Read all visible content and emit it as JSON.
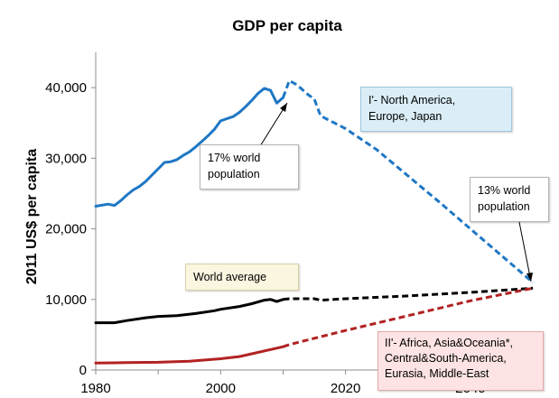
{
  "chart_data": {
    "type": "line",
    "title": "GDP per capita",
    "xlabel": "",
    "ylabel": "2011 US$ per capita",
    "xlim": [
      1980,
      2051
    ],
    "ylim": [
      0,
      45000
    ],
    "x_ticks": [
      "1980",
      "2000",
      "2020",
      "2040"
    ],
    "y_ticks": [
      "0",
      "10,000",
      "20,000",
      "30,000",
      "40,000"
    ],
    "grid": false,
    "colors": {
      "group1": "#1f77c4",
      "world": "#000000",
      "group2": "#b22222"
    },
    "series": [
      {
        "name": "I'- North America, Europe, Japan",
        "color": "#1f77c4",
        "historical": [
          [
            1980,
            23200
          ],
          [
            1982,
            23500
          ],
          [
            1983,
            23300
          ],
          [
            1984,
            24000
          ],
          [
            1985,
            24800
          ],
          [
            1986,
            25500
          ],
          [
            1987,
            26000
          ],
          [
            1988,
            26700
          ],
          [
            1989,
            27600
          ],
          [
            1990,
            28500
          ],
          [
            1991,
            29400
          ],
          [
            1992,
            29500
          ],
          [
            1993,
            29800
          ],
          [
            1994,
            30400
          ],
          [
            1995,
            30900
          ],
          [
            1996,
            31600
          ],
          [
            1997,
            32400
          ],
          [
            1998,
            33200
          ],
          [
            1999,
            34100
          ],
          [
            2000,
            35300
          ],
          [
            2001,
            35600
          ],
          [
            2002,
            35900
          ],
          [
            2003,
            36500
          ],
          [
            2004,
            37300
          ],
          [
            2005,
            38200
          ],
          [
            2006,
            39200
          ],
          [
            2007,
            39900
          ],
          [
            2008,
            39600
          ],
          [
            2009,
            37800
          ],
          [
            2010,
            38600
          ]
        ],
        "projection": [
          [
            2011,
            41000
          ],
          [
            2012,
            40500
          ],
          [
            2013,
            39800
          ],
          [
            2014,
            39000
          ],
          [
            2015,
            38400
          ],
          [
            2016,
            36000
          ],
          [
            2020,
            34200
          ],
          [
            2025,
            31200
          ],
          [
            2030,
            27500
          ],
          [
            2035,
            23800
          ],
          [
            2040,
            20000
          ],
          [
            2045,
            16200
          ],
          [
            2050,
            12400
          ]
        ]
      },
      {
        "name": "World average",
        "color": "#000000",
        "historical": [
          [
            1980,
            6700
          ],
          [
            1983,
            6700
          ],
          [
            1985,
            7000
          ],
          [
            1988,
            7400
          ],
          [
            1990,
            7600
          ],
          [
            1993,
            7700
          ],
          [
            1996,
            8000
          ],
          [
            1999,
            8400
          ],
          [
            2000,
            8600
          ],
          [
            2003,
            9000
          ],
          [
            2005,
            9400
          ],
          [
            2007,
            9900
          ],
          [
            2008,
            10000
          ],
          [
            2009,
            9700
          ],
          [
            2010,
            10000
          ]
        ],
        "projection": [
          [
            2011,
            10100
          ],
          [
            2013,
            10100
          ],
          [
            2015,
            10100
          ],
          [
            2016,
            9900
          ],
          [
            2020,
            10100
          ],
          [
            2030,
            10500
          ],
          [
            2040,
            11000
          ],
          [
            2050,
            11600
          ]
        ]
      },
      {
        "name": "II'- Africa, Asia&Oceania*, Central&South-America, Eurasia, Middle-East",
        "color": "#b22222",
        "historical": [
          [
            1980,
            1000
          ],
          [
            1985,
            1050
          ],
          [
            1990,
            1100
          ],
          [
            1995,
            1250
          ],
          [
            2000,
            1600
          ],
          [
            2003,
            1900
          ],
          [
            2005,
            2300
          ],
          [
            2008,
            2900
          ],
          [
            2010,
            3300
          ]
        ],
        "projection": [
          [
            2011,
            3600
          ],
          [
            2020,
            5600
          ],
          [
            2030,
            7700
          ],
          [
            2040,
            9800
          ],
          [
            2050,
            11600
          ]
        ]
      }
    ],
    "annotations": [
      "I'- North America, Europe, Japan",
      "17% world population",
      "13% world population",
      "World average",
      "II'- Africa, Asia&Oceania*, Central&South-America, Eurasia, Middle-East"
    ]
  },
  "labels": {
    "group1_line1": "I'- North America,",
    "group1_line2": "Europe, Japan",
    "pop17_line1": "17%  world",
    "pop17_line2": "population",
    "pop13_line1": "13%  world",
    "pop13_line2": "population",
    "world_avg": "World average",
    "group2_line1": "II'- Africa, Asia&Oceania*,",
    "group2_line2": "Central&South-America,",
    "group2_line3": "Eurasia, Middle-East"
  }
}
